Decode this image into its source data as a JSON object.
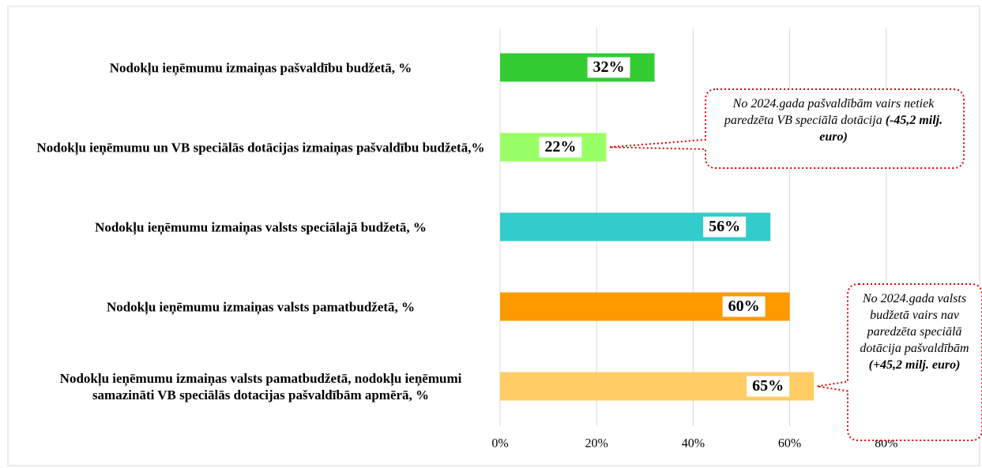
{
  "chart_data": {
    "type": "bar",
    "orientation": "horizontal",
    "categories": [
      "Nodokļu ieņēmumu izmaiņas pašvaldību budžetā, %",
      "Nodokļu ieņēmumu un VB speciālās dotācijas izmaiņas pašvaldību budžetā,%",
      "Nodokļu ieņēmumu izmaiņas valsts speciālajā budžetā, %",
      "Nodokļu ieņēmumu izmaiņas valsts pamatbudžetā, %",
      "Nodokļu ieņēmumu izmaiņas valsts pamatbudžetā, nodokļu ieņēmumi samazināti VB speciālās dotacijas pašvaldībām apmērā, %"
    ],
    "values": [
      32,
      22,
      56,
      60,
      65
    ],
    "value_labels": [
      "32%",
      "22%",
      "56%",
      "60%",
      "65%"
    ],
    "colors": [
      "#33cc33",
      "#99ff66",
      "#33cccc",
      "#ff9900",
      "#ffcc66"
    ],
    "xlim": [
      0,
      100
    ],
    "xticks": [
      {
        "value": 0,
        "label": "0%"
      },
      {
        "value": 20,
        "label": "20%"
      },
      {
        "value": 40,
        "label": "40%"
      },
      {
        "value": 60,
        "label": "60%"
      },
      {
        "value": 80,
        "label": "80%"
      }
    ],
    "grid": true,
    "annotations": [
      {
        "category": 1,
        "text": "No 2024.gada pašvaldībām vairs netiek paredzēta VB speciālā dotācija",
        "emphasis": "(-45,2 milj. euro)"
      },
      {
        "category": 4,
        "text": "No 2024.gada valsts budžetā vairs nav paredzēta speciālā dotācija pašvaldībām",
        "emphasis": "(+45,2 milj. euro)"
      }
    ]
  }
}
